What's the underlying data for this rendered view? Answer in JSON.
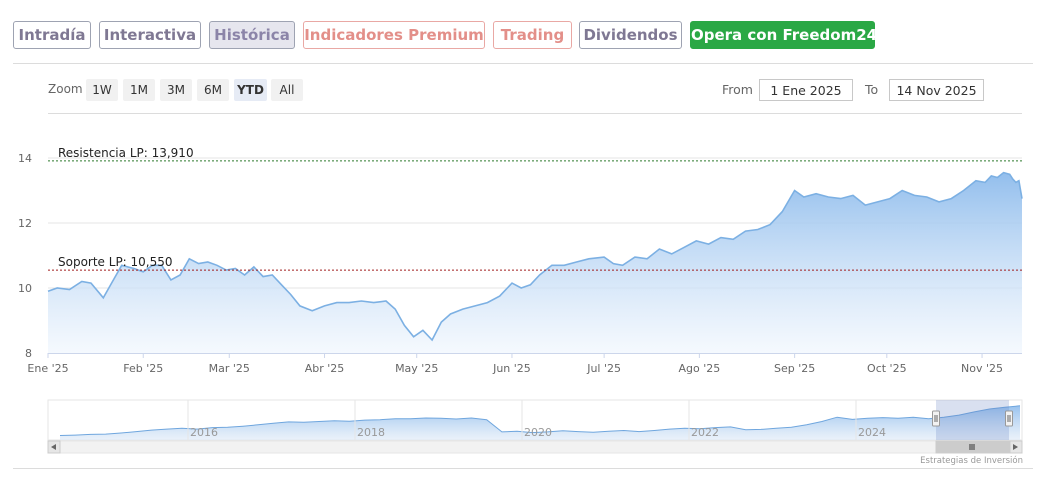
{
  "tabs": [
    {
      "label": "Intradía",
      "style": "gray"
    },
    {
      "label": "Interactiva",
      "style": "gray"
    },
    {
      "label": "Histórica",
      "style": "active"
    },
    {
      "label": "Indicadores Premium",
      "style": "salmon"
    },
    {
      "label": "Trading",
      "style": "salmon"
    },
    {
      "label": "Dividendos",
      "style": "gray"
    },
    {
      "label": "Opera con Freedom24",
      "style": "green"
    }
  ],
  "zoom": {
    "label": "Zoom",
    "buttons": [
      "1W",
      "1M",
      "3M",
      "6M",
      "YTD",
      "All"
    ],
    "selected": "YTD"
  },
  "range": {
    "from_label": "From",
    "from_value": "1 Ene 2025",
    "to_label": "To",
    "to_value": "14 Nov 2025"
  },
  "colors": {
    "line": "#7cb0e3",
    "fill_top": "#8dbbec",
    "fill_bottom": "#eef5fd",
    "resistance": "#2c7a2c",
    "support": "#a01c1c"
  },
  "chart_data": {
    "type": "area",
    "x_axis": {
      "type": "date",
      "range": [
        "2025-01-01",
        "2025-11-14"
      ],
      "ticks": [
        {
          "date": "2025-01-01",
          "label": "Ene '25"
        },
        {
          "date": "2025-02-01",
          "label": "Feb '25"
        },
        {
          "date": "2025-03-01",
          "label": "Mar '25"
        },
        {
          "date": "2025-04-01",
          "label": "Abr '25"
        },
        {
          "date": "2025-05-01",
          "label": "May '25"
        },
        {
          "date": "2025-06-01",
          "label": "Jun '25"
        },
        {
          "date": "2025-07-01",
          "label": "Jul '25"
        },
        {
          "date": "2025-08-01",
          "label": "Ago '25"
        },
        {
          "date": "2025-09-01",
          "label": "Sep '25"
        },
        {
          "date": "2025-10-01",
          "label": "Oct '25"
        },
        {
          "date": "2025-11-01",
          "label": "Nov '25"
        }
      ]
    },
    "y_axis": {
      "ylim": [
        8,
        14
      ],
      "ticks": [
        8,
        10,
        12,
        14
      ],
      "grid": true
    },
    "reference_lines": [
      {
        "label": "Resistencia LP: 13,910",
        "value": 13.91,
        "style": "dashed",
        "color_key": "resistance"
      },
      {
        "label": "Soporte LP: 10,550",
        "value": 10.55,
        "style": "dashed",
        "color_key": "support"
      }
    ],
    "series": [
      {
        "points": [
          [
            "2025-01-01",
            9.9
          ],
          [
            "2025-01-04",
            10.0
          ],
          [
            "2025-01-08",
            9.95
          ],
          [
            "2025-01-12",
            10.2
          ],
          [
            "2025-01-15",
            10.15
          ],
          [
            "2025-01-19",
            9.7
          ],
          [
            "2025-01-22",
            10.2
          ],
          [
            "2025-01-25",
            10.7
          ],
          [
            "2025-01-29",
            10.6
          ],
          [
            "2025-02-01",
            10.5
          ],
          [
            "2025-02-04",
            10.7
          ],
          [
            "2025-02-07",
            10.7
          ],
          [
            "2025-02-10",
            10.25
          ],
          [
            "2025-02-13",
            10.4
          ],
          [
            "2025-02-16",
            10.9
          ],
          [
            "2025-02-19",
            10.75
          ],
          [
            "2025-02-22",
            10.8
          ],
          [
            "2025-02-25",
            10.7
          ],
          [
            "2025-02-28",
            10.55
          ],
          [
            "2025-03-03",
            10.6
          ],
          [
            "2025-03-06",
            10.4
          ],
          [
            "2025-03-09",
            10.65
          ],
          [
            "2025-03-12",
            10.35
          ],
          [
            "2025-03-15",
            10.4
          ],
          [
            "2025-03-18",
            10.1
          ],
          [
            "2025-03-21",
            9.8
          ],
          [
            "2025-03-24",
            9.45
          ],
          [
            "2025-03-28",
            9.3
          ],
          [
            "2025-04-01",
            9.45
          ],
          [
            "2025-04-05",
            9.55
          ],
          [
            "2025-04-09",
            9.55
          ],
          [
            "2025-04-13",
            9.6
          ],
          [
            "2025-04-17",
            9.55
          ],
          [
            "2025-04-21",
            9.6
          ],
          [
            "2025-04-24",
            9.35
          ],
          [
            "2025-04-27",
            8.85
          ],
          [
            "2025-04-30",
            8.5
          ],
          [
            "2025-05-03",
            8.7
          ],
          [
            "2025-05-06",
            8.4
          ],
          [
            "2025-05-09",
            8.95
          ],
          [
            "2025-05-12",
            9.2
          ],
          [
            "2025-05-16",
            9.35
          ],
          [
            "2025-05-20",
            9.45
          ],
          [
            "2025-05-24",
            9.55
          ],
          [
            "2025-05-28",
            9.75
          ],
          [
            "2025-06-01",
            10.15
          ],
          [
            "2025-06-04",
            10.0
          ],
          [
            "2025-06-07",
            10.1
          ],
          [
            "2025-06-10",
            10.4
          ],
          [
            "2025-06-14",
            10.7
          ],
          [
            "2025-06-18",
            10.7
          ],
          [
            "2025-06-22",
            10.8
          ],
          [
            "2025-06-26",
            10.9
          ],
          [
            "2025-07-01",
            10.95
          ],
          [
            "2025-07-04",
            10.75
          ],
          [
            "2025-07-07",
            10.7
          ],
          [
            "2025-07-11",
            10.95
          ],
          [
            "2025-07-15",
            10.9
          ],
          [
            "2025-07-19",
            11.2
          ],
          [
            "2025-07-23",
            11.05
          ],
          [
            "2025-07-27",
            11.25
          ],
          [
            "2025-07-31",
            11.45
          ],
          [
            "2025-08-04",
            11.35
          ],
          [
            "2025-08-08",
            11.55
          ],
          [
            "2025-08-12",
            11.5
          ],
          [
            "2025-08-16",
            11.75
          ],
          [
            "2025-08-20",
            11.8
          ],
          [
            "2025-08-24",
            11.95
          ],
          [
            "2025-08-28",
            12.35
          ],
          [
            "2025-09-01",
            13.0
          ],
          [
            "2025-09-04",
            12.8
          ],
          [
            "2025-09-08",
            12.9
          ],
          [
            "2025-09-12",
            12.8
          ],
          [
            "2025-09-16",
            12.75
          ],
          [
            "2025-09-20",
            12.85
          ],
          [
            "2025-09-24",
            12.55
          ],
          [
            "2025-09-28",
            12.65
          ],
          [
            "2025-10-02",
            12.75
          ],
          [
            "2025-10-06",
            13.0
          ],
          [
            "2025-10-10",
            12.85
          ],
          [
            "2025-10-14",
            12.8
          ],
          [
            "2025-10-18",
            12.65
          ],
          [
            "2025-10-22",
            12.75
          ],
          [
            "2025-10-26",
            13.0
          ],
          [
            "2025-10-30",
            13.3
          ],
          [
            "2025-11-02",
            13.25
          ],
          [
            "2025-11-04",
            13.45
          ],
          [
            "2025-11-06",
            13.4
          ],
          [
            "2025-11-08",
            13.55
          ],
          [
            "2025-11-10",
            13.5
          ],
          [
            "2025-11-11",
            13.35
          ],
          [
            "2025-11-12",
            13.25
          ],
          [
            "2025-11-13",
            13.3
          ],
          [
            "2025-11-14",
            12.75
          ]
        ]
      }
    ]
  },
  "navigator": {
    "tick_labels": [
      "2016",
      "2018",
      "2020",
      "2022",
      "2024"
    ],
    "series": [
      5.2,
      5.3,
      5.5,
      5.6,
      5.9,
      6.3,
      6.7,
      7.0,
      7.2,
      7.0,
      7.4,
      7.5,
      7.8,
      8.2,
      8.6,
      9.0,
      8.9,
      9.1,
      9.3,
      9.2,
      9.5,
      9.6,
      9.9,
      9.9,
      10.1,
      10.0,
      9.8,
      10.1,
      9.6,
      6.2,
      6.4,
      6.0,
      6.2,
      6.5,
      6.3,
      6.1,
      6.4,
      6.6,
      6.3,
      6.6,
      7.0,
      7.2,
      7.1,
      7.4,
      7.6,
      6.8,
      6.9,
      7.2,
      7.5,
      8.2,
      9.1,
      10.3,
      9.7,
      10.0,
      10.2,
      10.0,
      10.3,
      9.9,
      10.3,
      10.9,
      11.8,
      12.6,
      13.1,
      13.5
    ]
  },
  "credit": "Estrategias de Inversión"
}
